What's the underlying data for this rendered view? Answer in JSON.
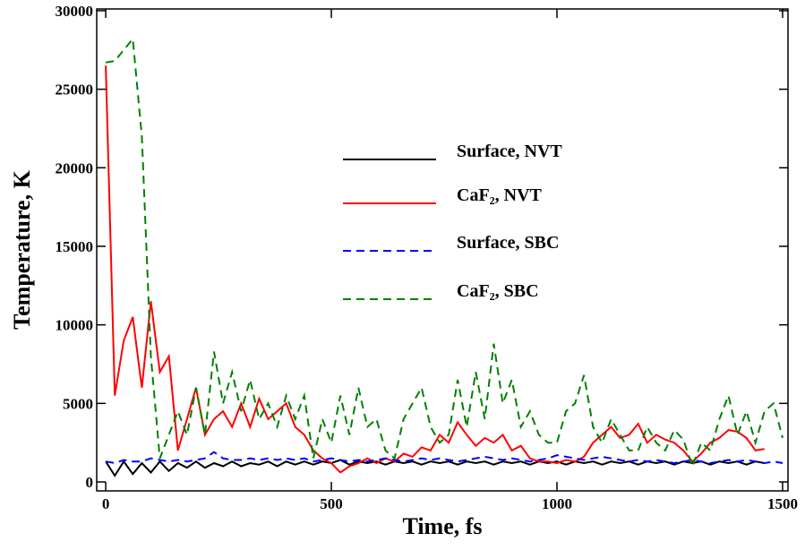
{
  "chart_data": {
    "type": "line",
    "x_label": "Time, fs",
    "y_label": "Temperature, K",
    "xlim": [
      -20,
      1512
    ],
    "ylim": [
      -570,
      30110
    ],
    "xticks": [
      0,
      500,
      1000,
      1500
    ],
    "yticks": [
      0,
      5000,
      10000,
      15000,
      20000,
      25000,
      30000
    ],
    "x": [
      0,
      20,
      40,
      60,
      80,
      100,
      120,
      140,
      160,
      180,
      200,
      220,
      240,
      260,
      280,
      300,
      320,
      340,
      360,
      380,
      400,
      420,
      440,
      460,
      480,
      500,
      520,
      540,
      560,
      580,
      600,
      620,
      640,
      660,
      680,
      700,
      720,
      740,
      760,
      780,
      800,
      820,
      840,
      860,
      880,
      900,
      920,
      940,
      960,
      980,
      1000,
      1020,
      1040,
      1060,
      1080,
      1100,
      1120,
      1140,
      1160,
      1180,
      1200,
      1220,
      1240,
      1260,
      1280,
      1300,
      1320,
      1340,
      1360,
      1380,
      1400,
      1420,
      1440,
      1460,
      1480,
      1500
    ],
    "series": [
      {
        "name": "Surface, NVT",
        "color": "#000000",
        "dash": false,
        "values": [
          1300,
          400,
          1300,
          500,
          1200,
          600,
          1300,
          700,
          1200,
          900,
          1300,
          900,
          1200,
          1000,
          1300,
          1000,
          1200,
          1100,
          1300,
          1000,
          1300,
          1100,
          1300,
          1100,
          1300,
          1200,
          1400,
          1100,
          1300,
          1200,
          1300,
          1100,
          1300,
          1200,
          1300,
          1100,
          1300,
          1200,
          1300,
          1100,
          1300,
          1200,
          1300,
          1100,
          1300,
          1200,
          1300,
          1100,
          1300,
          1200,
          1300,
          1100,
          1300,
          1200,
          1300,
          1100,
          1300,
          1200,
          1300,
          1100,
          1300,
          1200,
          1300,
          1100,
          1300,
          1200,
          1300,
          1100,
          1300,
          1200,
          1300,
          1100,
          1300,
          1200,
          null,
          null
        ]
      },
      {
        "name": "CaF₂, NVT",
        "color": "#ff0000",
        "dash": false,
        "values": [
          26500,
          5500,
          9000,
          10500,
          6000,
          11500,
          7000,
          8000,
          2000,
          4000,
          6000,
          3000,
          4000,
          4500,
          3500,
          5000,
          3500,
          5300,
          4000,
          4500,
          5000,
          3500,
          3000,
          2000,
          1500,
          1200,
          600,
          1000,
          1200,
          1500,
          1200,
          1500,
          1300,
          1800,
          1600,
          2200,
          2000,
          3000,
          2500,
          3800,
          3000,
          2300,
          2800,
          2500,
          3000,
          2000,
          2300,
          1500,
          1300,
          1300,
          1200,
          1400,
          1300,
          1600,
          2500,
          3000,
          3500,
          2800,
          3000,
          3700,
          2500,
          3000,
          2700,
          2500,
          2000,
          1300,
          1800,
          2500,
          2800,
          3300,
          3200,
          2800,
          2000,
          2100,
          null,
          null
        ]
      },
      {
        "name": "Surface, SBC",
        "color": "#0000ff",
        "dash": true,
        "values": [
          1300,
          1200,
          1400,
          1300,
          1300,
          1500,
          1400,
          1300,
          1400,
          1300,
          1400,
          1500,
          1900,
          1500,
          1400,
          1400,
          1500,
          1400,
          1500,
          1400,
          1500,
          1400,
          1500,
          1300,
          1400,
          1500,
          1400,
          1300,
          1400,
          1300,
          1400,
          1500,
          1400,
          1300,
          1400,
          1500,
          1400,
          1500,
          1400,
          1300,
          1400,
          1500,
          1600,
          1500,
          1400,
          1500,
          1400,
          1300,
          1400,
          1500,
          1700,
          1600,
          1500,
          1400,
          1500,
          1600,
          1500,
          1400,
          1300,
          1400,
          1300,
          1400,
          1300,
          1200,
          1300,
          1400,
          1300,
          1200,
          1300,
          1400,
          1300,
          1400,
          1300,
          1200,
          1300,
          1200
        ]
      },
      {
        "name": "CaF₂, SBC",
        "color": "#008000",
        "dash": true,
        "values": [
          26700,
          26800,
          27500,
          28200,
          22000,
          8000,
          1500,
          3000,
          4500,
          3000,
          6000,
          3000,
          8300,
          5000,
          7000,
          4500,
          6500,
          4000,
          5000,
          3500,
          5500,
          4000,
          5500,
          1500,
          4000,
          2500,
          5500,
          3000,
          6000,
          3500,
          4000,
          2000,
          1500,
          4000,
          5000,
          6000,
          3500,
          2500,
          3000,
          6500,
          3500,
          7000,
          4000,
          8800,
          5000,
          6500,
          3500,
          4500,
          3000,
          2500,
          2500,
          4500,
          5000,
          6800,
          3500,
          2500,
          4000,
          3000,
          2000,
          2000,
          3500,
          2500,
          2000,
          3300,
          2700,
          1000,
          2500,
          2000,
          4000,
          5500,
          3000,
          4500,
          2500,
          4500,
          5000,
          2800
        ]
      }
    ]
  }
}
